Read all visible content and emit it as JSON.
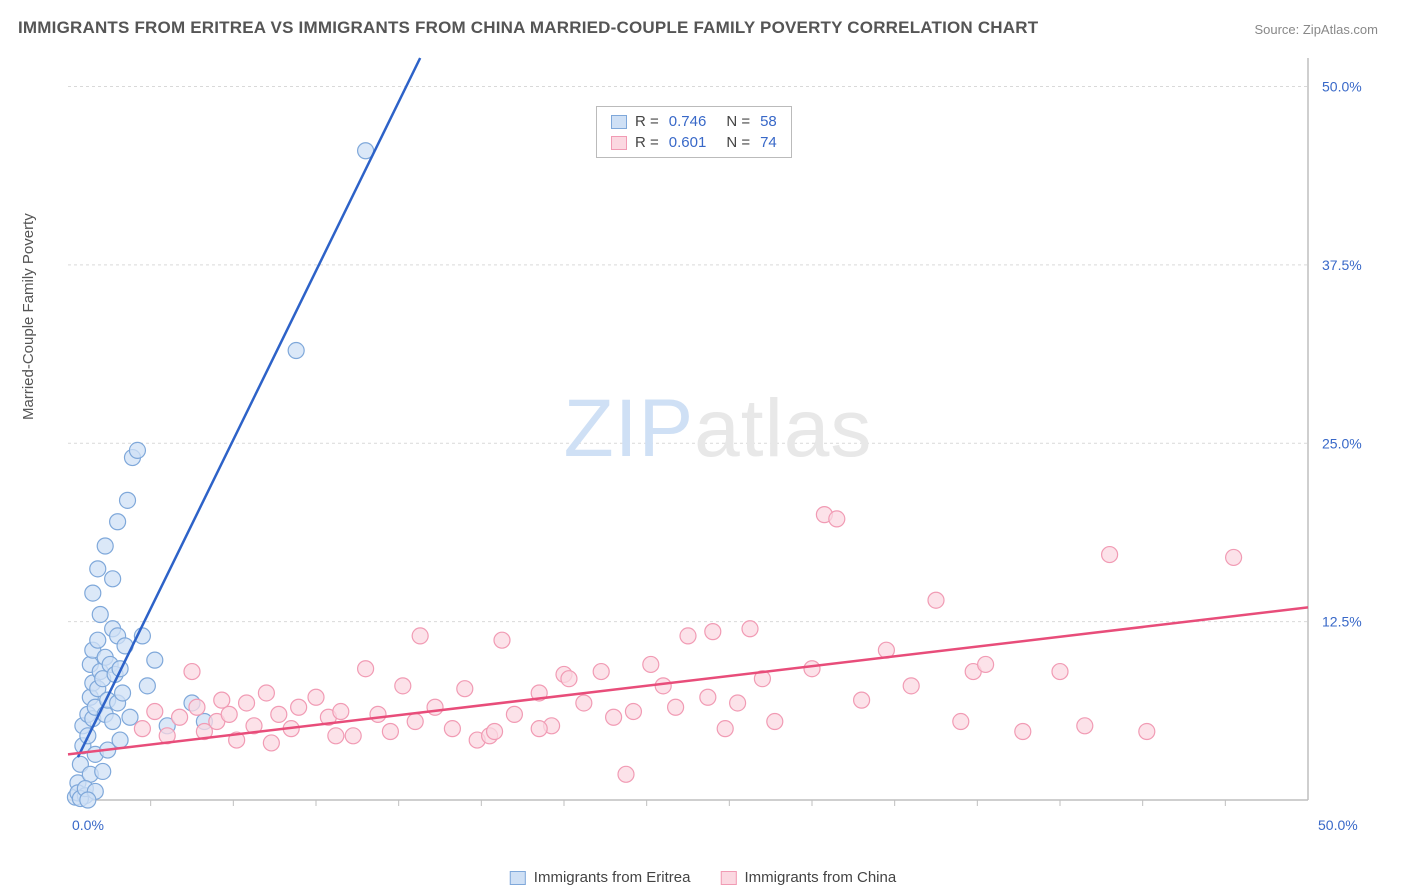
{
  "title": "IMMIGRANTS FROM ERITREA VS IMMIGRANTS FROM CHINA MARRIED-COUPLE FAMILY POVERTY CORRELATION CHART",
  "source_prefix": "Source: ",
  "source_site": "ZipAtlas.com",
  "ylabel": "Married-Couple Family Poverty",
  "watermark_a": "ZIP",
  "watermark_b": "atlas",
  "chart": {
    "type": "scatter",
    "xlim": [
      0,
      50
    ],
    "ylim": [
      0,
      52
    ],
    "x_ticks": [
      0,
      50
    ],
    "x_tick_labels": [
      "0.0%",
      "50.0%"
    ],
    "y_ticks": [
      12.5,
      25,
      37.5,
      50
    ],
    "y_tick_labels": [
      "12.5%",
      "25.0%",
      "37.5%",
      "50.0%"
    ],
    "background_color": "#ffffff",
    "grid_color": "#d9d9d9",
    "axis_color": "#bfbfbf",
    "marker_radius": 8,
    "marker_stroke_width": 1.2,
    "trend_width": 2.5,
    "series": [
      {
        "name": "Immigrants from Eritrea",
        "fill": "#cfe0f5",
        "stroke": "#7fa8da",
        "trend_color": "#2d62c8",
        "r_label": "R =",
        "r": "0.746",
        "n_label": "N =",
        "n": "58",
        "trend": {
          "x1": 0.4,
          "y1": 3.0,
          "x2": 14.2,
          "y2": 52
        },
        "points": [
          [
            0.3,
            0.2
          ],
          [
            0.4,
            1.2
          ],
          [
            0.4,
            0.5
          ],
          [
            0.5,
            2.5
          ],
          [
            0.6,
            3.8
          ],
          [
            0.6,
            5.2
          ],
          [
            0.7,
            0.3
          ],
          [
            0.8,
            6.0
          ],
          [
            0.8,
            4.5
          ],
          [
            0.9,
            7.2
          ],
          [
            0.9,
            1.8
          ],
          [
            0.9,
            9.5
          ],
          [
            1.0,
            5.7
          ],
          [
            1.0,
            8.2
          ],
          [
            1.0,
            10.5
          ],
          [
            1.1,
            6.5
          ],
          [
            1.1,
            3.2
          ],
          [
            1.2,
            7.8
          ],
          [
            1.2,
            11.2
          ],
          [
            1.3,
            9.0
          ],
          [
            1.3,
            13.0
          ],
          [
            1.4,
            8.5
          ],
          [
            1.5,
            6.0
          ],
          [
            1.5,
            10.0
          ],
          [
            1.6,
            7.0
          ],
          [
            1.7,
            9.5
          ],
          [
            1.8,
            12.0
          ],
          [
            1.8,
            5.5
          ],
          [
            1.9,
            8.8
          ],
          [
            2.0,
            11.5
          ],
          [
            2.0,
            6.8
          ],
          [
            2.1,
            9.2
          ],
          [
            2.2,
            7.5
          ],
          [
            2.3,
            10.8
          ],
          [
            1.0,
            14.5
          ],
          [
            1.2,
            16.2
          ],
          [
            1.5,
            17.8
          ],
          [
            1.8,
            15.5
          ],
          [
            2.0,
            19.5
          ],
          [
            2.4,
            21.0
          ],
          [
            2.6,
            24.0
          ],
          [
            2.8,
            24.5
          ],
          [
            3.0,
            11.5
          ],
          [
            3.2,
            8.0
          ],
          [
            3.5,
            9.8
          ],
          [
            4.0,
            5.2
          ],
          [
            5.0,
            6.8
          ],
          [
            5.5,
            5.5
          ],
          [
            9.2,
            31.5
          ],
          [
            12.0,
            45.5
          ],
          [
            0.5,
            0.1
          ],
          [
            0.7,
            0.8
          ],
          [
            1.4,
            2.0
          ],
          [
            1.6,
            3.5
          ],
          [
            2.1,
            4.2
          ],
          [
            2.5,
            5.8
          ],
          [
            1.1,
            0.6
          ],
          [
            0.8,
            0.0
          ]
        ]
      },
      {
        "name": "Immigrants from China",
        "fill": "#fbd8e1",
        "stroke": "#f19bb4",
        "trend_color": "#e84d7a",
        "r_label": "R =",
        "r": "0.601",
        "n_label": "N =",
        "n": "74",
        "trend": {
          "x1": 0,
          "y1": 3.2,
          "x2": 50,
          "y2": 13.5
        },
        "points": [
          [
            3.0,
            5.0
          ],
          [
            3.5,
            6.2
          ],
          [
            4.0,
            4.5
          ],
          [
            4.5,
            5.8
          ],
          [
            5.0,
            9.0
          ],
          [
            5.2,
            6.5
          ],
          [
            5.5,
            4.8
          ],
          [
            6.0,
            5.5
          ],
          [
            6.2,
            7.0
          ],
          [
            6.5,
            6.0
          ],
          [
            6.8,
            4.2
          ],
          [
            7.2,
            6.8
          ],
          [
            7.5,
            5.2
          ],
          [
            8.0,
            7.5
          ],
          [
            8.5,
            6.0
          ],
          [
            9.0,
            5.0
          ],
          [
            9.3,
            6.5
          ],
          [
            10.0,
            7.2
          ],
          [
            10.5,
            5.8
          ],
          [
            11.0,
            6.2
          ],
          [
            11.5,
            4.5
          ],
          [
            12.0,
            9.2
          ],
          [
            12.5,
            6.0
          ],
          [
            13.0,
            4.8
          ],
          [
            13.5,
            8.0
          ],
          [
            14.0,
            5.5
          ],
          [
            14.2,
            11.5
          ],
          [
            14.8,
            6.5
          ],
          [
            15.5,
            5.0
          ],
          [
            16.0,
            7.8
          ],
          [
            16.5,
            4.2
          ],
          [
            17.0,
            4.5
          ],
          [
            17.2,
            4.8
          ],
          [
            17.5,
            11.2
          ],
          [
            18.0,
            6.0
          ],
          [
            19.0,
            7.5
          ],
          [
            19.5,
            5.2
          ],
          [
            20.0,
            8.8
          ],
          [
            20.2,
            8.5
          ],
          [
            20.8,
            6.8
          ],
          [
            21.5,
            9.0
          ],
          [
            22.0,
            5.8
          ],
          [
            22.8,
            6.2
          ],
          [
            23.5,
            9.5
          ],
          [
            24.0,
            8.0
          ],
          [
            24.5,
            6.5
          ],
          [
            25.0,
            11.5
          ],
          [
            25.8,
            7.2
          ],
          [
            26.0,
            11.8
          ],
          [
            26.5,
            5.0
          ],
          [
            27.0,
            6.8
          ],
          [
            27.5,
            12.0
          ],
          [
            28.0,
            8.5
          ],
          [
            28.5,
            5.5
          ],
          [
            30.0,
            9.2
          ],
          [
            30.5,
            20.0
          ],
          [
            31.0,
            19.7
          ],
          [
            32.0,
            7.0
          ],
          [
            33.0,
            10.5
          ],
          [
            34.0,
            8.0
          ],
          [
            35.0,
            14.0
          ],
          [
            36.0,
            5.5
          ],
          [
            36.5,
            9.0
          ],
          [
            37.0,
            9.5
          ],
          [
            38.5,
            4.8
          ],
          [
            40.0,
            9.0
          ],
          [
            41.0,
            5.2
          ],
          [
            42.0,
            17.2
          ],
          [
            43.5,
            4.8
          ],
          [
            47.0,
            17.0
          ],
          [
            22.5,
            1.8
          ],
          [
            19.0,
            5.0
          ],
          [
            8.2,
            4.0
          ],
          [
            10.8,
            4.5
          ]
        ]
      }
    ]
  }
}
